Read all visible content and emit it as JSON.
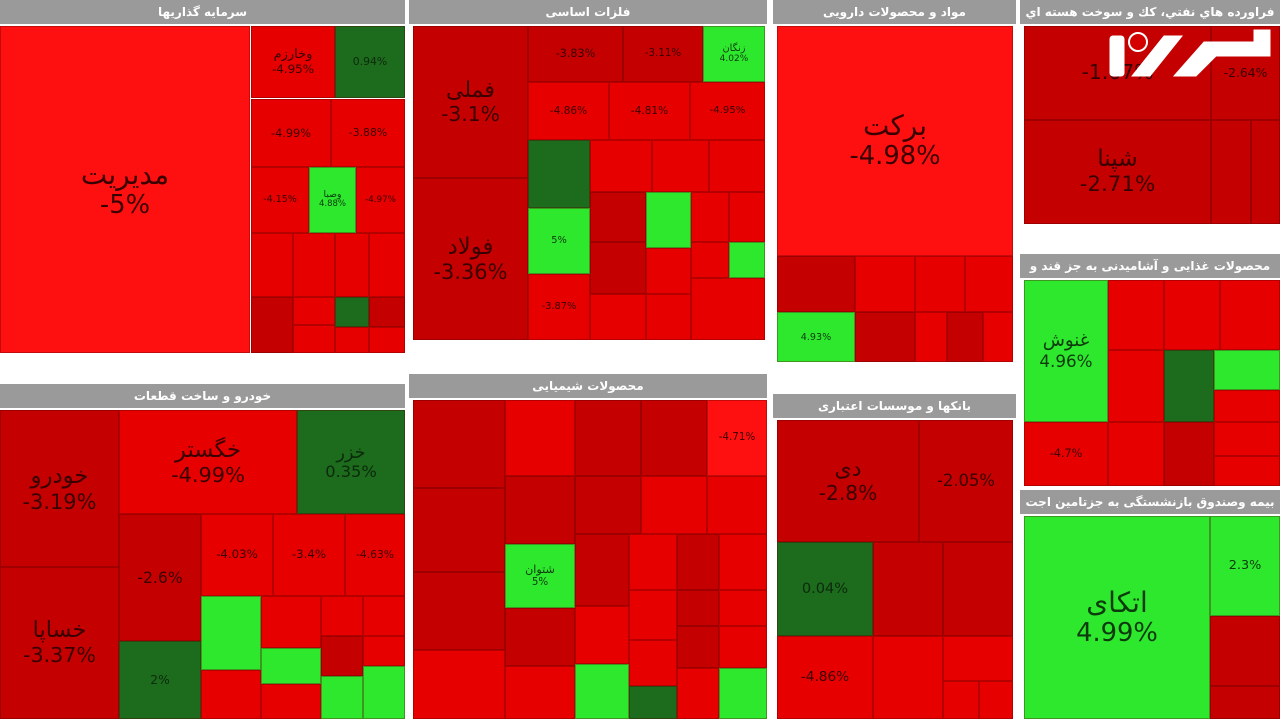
{
  "chart_data": {
    "type": "heatmap",
    "colors": {
      "deep_red": "#c40000",
      "red": "#e60000",
      "bright_red": "#ff1010",
      "green": "#2ee82e",
      "dark_green": "#1d6b1d"
    },
    "panels": [
      {
        "title": "سرمایه گذاریها",
        "tiles": [
          {
            "name": "مدیریت",
            "pct": "-5%",
            "color": "bright_red"
          },
          {
            "name": "وخارزم",
            "pct": "-4.95%",
            "color": "red"
          },
          {
            "name": "",
            "pct": "0.94%",
            "color": "dark_green"
          },
          {
            "name": "",
            "pct": "-4.99%",
            "color": "red"
          },
          {
            "name": "",
            "pct": "-3.88%",
            "color": "red"
          },
          {
            "name": "",
            "pct": "-4.15%",
            "color": "red"
          },
          {
            "name": "وصبا",
            "pct": "4.88%",
            "color": "green"
          },
          {
            "name": "",
            "pct": "-4.97%",
            "color": "red"
          },
          {
            "name": "",
            "pct": "",
            "color": "red"
          },
          {
            "name": "",
            "pct": "",
            "color": "red"
          },
          {
            "name": "",
            "pct": "",
            "color": "red"
          },
          {
            "name": "",
            "pct": "",
            "color": "red"
          },
          {
            "name": "",
            "pct": "",
            "color": "deep_red"
          },
          {
            "name": "",
            "pct": "",
            "color": "red"
          },
          {
            "name": "",
            "pct": "",
            "color": "dark_green"
          },
          {
            "name": "",
            "pct": "",
            "color": "deep_red"
          },
          {
            "name": "",
            "pct": "",
            "color": "red"
          },
          {
            "name": "",
            "pct": "",
            "color": "red"
          },
          {
            "name": "",
            "pct": "",
            "color": "red"
          }
        ]
      },
      {
        "title": "فلزات اساسی",
        "tiles": [
          {
            "name": "فملی",
            "pct": "-3.1%",
            "color": "deep_red"
          },
          {
            "name": "فولاد",
            "pct": "-3.36%",
            "color": "deep_red"
          },
          {
            "name": "",
            "pct": "-3.83%",
            "color": "deep_red"
          },
          {
            "name": "",
            "pct": "-3.11%",
            "color": "deep_red"
          },
          {
            "name": "زنگان",
            "pct": "4.02%",
            "color": "green"
          },
          {
            "name": "",
            "pct": "-4.86%",
            "color": "red"
          },
          {
            "name": "",
            "pct": "-4.81%",
            "color": "red"
          },
          {
            "name": "",
            "pct": "-4.95%",
            "color": "red"
          },
          {
            "name": "",
            "pct": "",
            "color": "dark_green"
          },
          {
            "name": "",
            "pct": "",
            "color": "red"
          },
          {
            "name": "",
            "pct": "",
            "color": "red"
          },
          {
            "name": "",
            "pct": "",
            "color": "red"
          },
          {
            "name": "",
            "pct": "5%",
            "color": "green"
          },
          {
            "name": "",
            "pct": "",
            "color": "deep_red"
          },
          {
            "name": "",
            "pct": "",
            "color": "green"
          },
          {
            "name": "",
            "pct": "",
            "color": "red"
          },
          {
            "name": "",
            "pct": "",
            "color": "red"
          },
          {
            "name": "",
            "pct": "",
            "color": "deep_red"
          },
          {
            "name": "",
            "pct": "",
            "color": "red"
          },
          {
            "name": "",
            "pct": "",
            "color": "red"
          },
          {
            "name": "",
            "pct": "",
            "color": "green"
          },
          {
            "name": "",
            "pct": "-3.87%",
            "color": "red"
          },
          {
            "name": "",
            "pct": "",
            "color": "red"
          },
          {
            "name": "",
            "pct": "",
            "color": "red"
          },
          {
            "name": "",
            "pct": "",
            "color": "red"
          }
        ]
      },
      {
        "title": "مواد و محصولات دارویی",
        "tiles": [
          {
            "name": "برکت",
            "pct": "-4.98%",
            "color": "bright_red"
          },
          {
            "name": "",
            "pct": "",
            "color": "deep_red"
          },
          {
            "name": "",
            "pct": "",
            "color": "red"
          },
          {
            "name": "",
            "pct": "",
            "color": "red"
          },
          {
            "name": "",
            "pct": "",
            "color": "red"
          },
          {
            "name": "",
            "pct": "4.93%",
            "color": "green"
          },
          {
            "name": "",
            "pct": "",
            "color": "deep_red"
          },
          {
            "name": "",
            "pct": "",
            "color": "red"
          },
          {
            "name": "",
            "pct": "",
            "color": "deep_red"
          },
          {
            "name": "",
            "pct": "",
            "color": "red"
          }
        ]
      },
      {
        "title": "فراورده هاي نفتي، كك و سوخت هسته اي",
        "tiles": [
          {
            "name": "",
            "pct": "-1.67%",
            "color": "deep_red"
          },
          {
            "name": "",
            "pct": "-2.64%",
            "color": "deep_red"
          },
          {
            "name": "شپنا",
            "pct": "-2.71%",
            "color": "deep_red"
          },
          {
            "name": "",
            "pct": "",
            "color": "deep_red"
          },
          {
            "name": "",
            "pct": "",
            "color": "deep_red"
          }
        ]
      },
      {
        "title": "خودرو و ساخت قطعات",
        "tiles": [
          {
            "name": "خودرو",
            "pct": "-3.19%",
            "color": "deep_red"
          },
          {
            "name": "خساپا",
            "pct": "-3.37%",
            "color": "deep_red"
          },
          {
            "name": "خگستر",
            "pct": "-4.99%",
            "color": "red"
          },
          {
            "name": "خزر",
            "pct": "0.35%",
            "color": "dark_green"
          },
          {
            "name": "",
            "pct": "-2.6%",
            "color": "deep_red"
          },
          {
            "name": "",
            "pct": "-4.03%",
            "color": "red"
          },
          {
            "name": "",
            "pct": "-3.4%",
            "color": "red"
          },
          {
            "name": "",
            "pct": "-4.63%",
            "color": "red"
          },
          {
            "name": "",
            "pct": "2%",
            "color": "dark_green"
          },
          {
            "name": "",
            "pct": "",
            "color": "green"
          },
          {
            "name": "",
            "pct": "",
            "color": "red"
          },
          {
            "name": "",
            "pct": "",
            "color": "red"
          },
          {
            "name": "",
            "pct": "",
            "color": "red"
          },
          {
            "name": "",
            "pct": "",
            "color": "green"
          },
          {
            "name": "",
            "pct": "",
            "color": "deep_red"
          },
          {
            "name": "",
            "pct": "",
            "color": "red"
          },
          {
            "name": "",
            "pct": "",
            "color": "green"
          },
          {
            "name": "",
            "pct": "",
            "color": "red"
          },
          {
            "name": "",
            "pct": "",
            "color": "green"
          },
          {
            "name": "",
            "pct": "",
            "color": "red"
          }
        ]
      },
      {
        "title": "محصولات شیمیایی",
        "tiles": [
          {
            "name": "",
            "pct": "",
            "color": "deep_red"
          },
          {
            "name": "",
            "pct": "",
            "color": "red"
          },
          {
            "name": "",
            "pct": "",
            "color": "deep_red"
          },
          {
            "name": "",
            "pct": "",
            "color": "deep_red"
          },
          {
            "name": "",
            "pct": "-4.71%",
            "color": "bright_red"
          },
          {
            "name": "",
            "pct": "",
            "color": "deep_red"
          },
          {
            "name": "",
            "pct": "",
            "color": "deep_red"
          },
          {
            "name": "",
            "pct": "",
            "color": "deep_red"
          },
          {
            "name": "",
            "pct": "",
            "color": "red"
          },
          {
            "name": "",
            "pct": "",
            "color": "red"
          },
          {
            "name": "",
            "pct": "",
            "color": "deep_red"
          },
          {
            "name": "شتوان",
            "pct": "5%",
            "color": "green"
          },
          {
            "name": "",
            "pct": "",
            "color": "deep_red"
          },
          {
            "name": "",
            "pct": "",
            "color": "red"
          },
          {
            "name": "",
            "pct": "",
            "color": "deep_red"
          },
          {
            "name": "",
            "pct": "",
            "color": "red"
          },
          {
            "name": "",
            "pct": "",
            "color": "deep_red"
          },
          {
            "name": "",
            "pct": "",
            "color": "red"
          },
          {
            "name": "",
            "pct": "",
            "color": "red"
          },
          {
            "name": "",
            "pct": "",
            "color": "deep_red"
          },
          {
            "name": "",
            "pct": "",
            "color": "red"
          },
          {
            "name": "",
            "pct": "",
            "color": "red"
          },
          {
            "name": "",
            "pct": "",
            "color": "red"
          },
          {
            "name": "",
            "pct": "",
            "color": "deep_red"
          },
          {
            "name": "",
            "pct": "",
            "color": "red"
          },
          {
            "name": "",
            "pct": "",
            "color": "red"
          },
          {
            "name": "",
            "pct": "",
            "color": "green"
          },
          {
            "name": "",
            "pct": "",
            "color": "red"
          },
          {
            "name": "",
            "pct": "",
            "color": "green"
          },
          {
            "name": "",
            "pct": "",
            "color": "dark_green"
          }
        ]
      },
      {
        "title": "بانکها و موسسات اعتباری",
        "tiles": [
          {
            "name": "دی",
            "pct": "-2.8%",
            "color": "deep_red"
          },
          {
            "name": "",
            "pct": "-2.05%",
            "color": "deep_red"
          },
          {
            "name": "",
            "pct": "0.04%",
            "color": "dark_green"
          },
          {
            "name": "",
            "pct": "",
            "color": "deep_red"
          },
          {
            "name": "",
            "pct": "",
            "color": "deep_red"
          },
          {
            "name": "",
            "pct": "-4.86%",
            "color": "red"
          },
          {
            "name": "",
            "pct": "",
            "color": "red"
          },
          {
            "name": "",
            "pct": "",
            "color": "red"
          },
          {
            "name": "",
            "pct": "",
            "color": "red"
          },
          {
            "name": "",
            "pct": "",
            "color": "red"
          }
        ]
      },
      {
        "title": "محصولات غذایی و آشامیدنی به جز قند و",
        "tiles": [
          {
            "name": "غنوش",
            "pct": "4.96%",
            "color": "green"
          },
          {
            "name": "",
            "pct": "",
            "color": "red"
          },
          {
            "name": "",
            "pct": "",
            "color": "red"
          },
          {
            "name": "",
            "pct": "",
            "color": "red"
          },
          {
            "name": "",
            "pct": "",
            "color": "red"
          },
          {
            "name": "",
            "pct": "",
            "color": "dark_green"
          },
          {
            "name": "",
            "pct": "",
            "color": "green"
          },
          {
            "name": "",
            "pct": "",
            "color": "red"
          },
          {
            "name": "",
            "pct": "",
            "color": "red"
          },
          {
            "name": "",
            "pct": "-4.7%",
            "color": "red"
          },
          {
            "name": "",
            "pct": "",
            "color": "deep_red"
          },
          {
            "name": "",
            "pct": "",
            "color": "red"
          },
          {
            "name": "",
            "pct": "",
            "color": "red"
          }
        ]
      },
      {
        "title": "بیمه وصندوق بازنشستگی به جزتامین اجت",
        "tiles": [
          {
            "name": "اتکای",
            "pct": "4.99%",
            "color": "green"
          },
          {
            "name": "",
            "pct": "2.3%",
            "color": "green"
          },
          {
            "name": "",
            "pct": "",
            "color": "deep_red"
          },
          {
            "name": "",
            "pct": "",
            "color": "deep_red"
          }
        ]
      }
    ]
  },
  "logo": {
    "text": "رکنا"
  }
}
